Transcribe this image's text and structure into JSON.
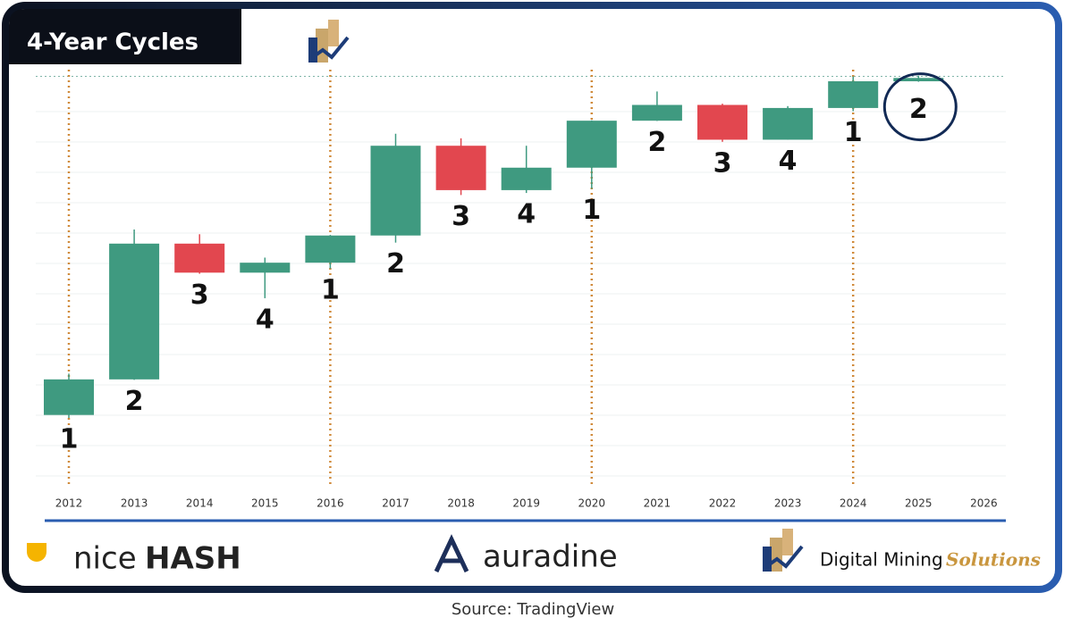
{
  "chart_data": {
    "type": "candlestick",
    "title": "4-Year Cycles",
    "categories": [
      "2012",
      "2013",
      "2014",
      "2015",
      "2016",
      "2017",
      "2018",
      "2019",
      "2020",
      "2021",
      "2022",
      "2023",
      "2024",
      "2025",
      "2026"
    ],
    "open": [
      4.7,
      13.5,
      757,
      320,
      430,
      963,
      13800,
      3700,
      7200,
      29000,
      46300,
      16500,
      42300,
      93400,
      null
    ],
    "high": [
      16,
      1150,
      1000,
      500,
      980,
      19700,
      17200,
      13800,
      29300,
      69000,
      48000,
      44700,
      108000,
      110000,
      null
    ],
    "low": [
      4.3,
      13.3,
      310,
      150,
      360,
      780,
      3200,
      3400,
      3850,
      28800,
      15500,
      16500,
      38500,
      92000,
      null
    ],
    "close": [
      13.5,
      757,
      320,
      430,
      963,
      13800,
      3700,
      7200,
      29000,
      46300,
      16500,
      42300,
      93400,
      103000,
      null
    ],
    "cycle_labels": [
      "1",
      "2",
      "3",
      "4",
      "1",
      "2",
      "3",
      "4",
      "1",
      "2",
      "3",
      "4",
      "1",
      "2",
      null
    ],
    "up_color": "#3f9a80",
    "down_color": "#e2474f",
    "log_scale": true,
    "ylim": [
      0.56,
      125000
    ],
    "source": "Source: TradingView"
  },
  "footer": {
    "nicehash": [
      "nice",
      "HASH"
    ],
    "auradine": "auradine",
    "dms": [
      "Digital Mining",
      "Solutions"
    ]
  }
}
